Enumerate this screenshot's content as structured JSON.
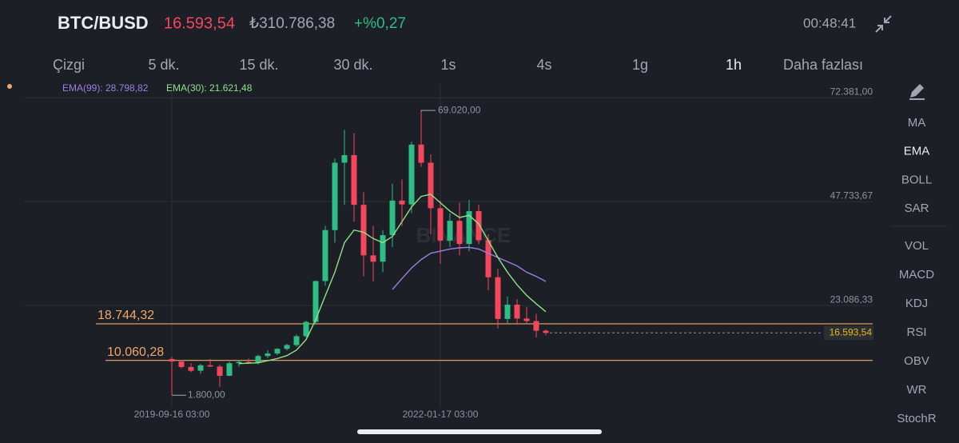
{
  "header": {
    "symbol": "BTC/BUSD",
    "price": "16.593,54",
    "price_local": "₺310.786,38",
    "change": "+%0,27",
    "time": "00:48:41"
  },
  "tabs": {
    "items": [
      "Çizgi",
      "5 dk.",
      "15 dk.",
      "30 dk.",
      "1s",
      "4s",
      "1g",
      "1h",
      "Daha fazlası"
    ],
    "selected": 7
  },
  "indicators": {
    "items": [
      "MA",
      "EMA",
      "BOLL",
      "SAR",
      "VOL",
      "MACD",
      "KDJ",
      "RSI",
      "OBV",
      "WR",
      "StochR"
    ],
    "selected": 1
  },
  "chart_data": {
    "type": "candlestick",
    "watermark": "BINANCE",
    "categories": [
      "2019-09-16 03:00",
      null,
      null,
      null,
      null,
      null,
      null,
      null,
      null,
      null,
      null,
      null,
      null,
      null,
      null,
      null,
      null,
      null,
      null,
      null,
      null,
      null,
      null,
      null,
      null,
      null,
      null,
      null,
      "2022-01-17 03:00",
      null,
      null,
      null,
      null,
      null,
      null,
      null,
      null,
      null,
      null,
      null
    ],
    "open": [
      10400,
      9800,
      8500,
      7600,
      8900,
      8600,
      6400,
      9400,
      9700,
      9500,
      11100,
      11700,
      12800,
      13700,
      15800,
      19200,
      28900,
      41000,
      57000,
      58800,
      47000,
      35000,
      33500,
      39800,
      48000,
      47100,
      61300,
      57000,
      46200,
      38500,
      43200,
      37700,
      45500,
      38600,
      29800,
      19900,
      23300,
      20000,
      19400,
      17100
    ],
    "high": [
      10900,
      10200,
      9400,
      9200,
      10400,
      9100,
      9800,
      10100,
      10500,
      11400,
      12500,
      13000,
      14000,
      16200,
      19500,
      29000,
      42000,
      58000,
      64800,
      64000,
      50000,
      42000,
      41000,
      52000,
      53000,
      62000,
      69020,
      59000,
      48000,
      45000,
      47500,
      48200,
      47000,
      40000,
      31800,
      25200,
      24600,
      22800,
      21100,
      17400
    ],
    "low": [
      1800,
      8200,
      7300,
      6900,
      8500,
      3800,
      6300,
      8600,
      9200,
      9100,
      10600,
      11300,
      12400,
      13300,
      15500,
      18500,
      27800,
      38000,
      47000,
      43000,
      30000,
      28800,
      31000,
      37000,
      42000,
      45000,
      56000,
      40000,
      33000,
      37000,
      35000,
      36000,
      37600,
      26700,
      17600,
      18900,
      18500,
      18800,
      15500,
      16000
    ],
    "close": [
      9800,
      8500,
      7600,
      8900,
      8600,
      6400,
      9400,
      9700,
      9500,
      11100,
      11700,
      12800,
      13700,
      15800,
      19200,
      28900,
      41000,
      57000,
      58800,
      47000,
      35000,
      33500,
      39800,
      48000,
      47100,
      61300,
      57000,
      46200,
      38500,
      43200,
      37700,
      45500,
      38600,
      29800,
      19900,
      23300,
      20000,
      19400,
      17100,
      16593.54
    ],
    "up_color": "#2ebd85",
    "down_color": "#f6465d",
    "series": [
      {
        "name": "EMA(99): 28.798,82",
        "color": "#9c7fe0",
        "values": [
          null,
          null,
          null,
          null,
          null,
          null,
          null,
          null,
          null,
          null,
          null,
          null,
          null,
          null,
          null,
          null,
          null,
          null,
          null,
          null,
          null,
          null,
          null,
          26900,
          29500,
          32000,
          34000,
          35500,
          36000,
          36500,
          36800,
          36900,
          36500,
          35500,
          34500,
          33500,
          32500,
          31000,
          30000,
          28798.82
        ]
      },
      {
        "name": "EMA(30): 21.621,48",
        "color": "#8fe388",
        "values": [
          null,
          null,
          null,
          null,
          null,
          null,
          null,
          9300,
          9400,
          9500,
          10000,
          10500,
          11200,
          12500,
          15000,
          19700,
          25400,
          31000,
          38000,
          41000,
          40500,
          39000,
          38000,
          39500,
          43000,
          46500,
          49000,
          49500,
          47500,
          45500,
          44000,
          44500,
          42500,
          38500,
          34500,
          31000,
          28000,
          25500,
          23500,
          21621.48
        ]
      }
    ],
    "ylim": [
      -1200,
      75700
    ],
    "yticks": [
      {
        "value": 23086.33,
        "label": "23.086,33"
      },
      {
        "value": 47733.67,
        "label": "47.733,67"
      },
      {
        "value": 72381,
        "label": "72.381,00"
      }
    ],
    "high_marker": {
      "value": 69020,
      "label": "69.020,00"
    },
    "low_marker": {
      "value": 1800,
      "label": "1.800,00"
    },
    "hlines": [
      {
        "value": 18744.32,
        "label": "18.744,32",
        "color": "#f0a868"
      },
      {
        "value": 10060.28,
        "label": "10.060,28",
        "color": "#f0a868"
      }
    ],
    "last_price": {
      "value": 16593.54,
      "label": "16.593,54",
      "color": "#f0b90b"
    }
  }
}
